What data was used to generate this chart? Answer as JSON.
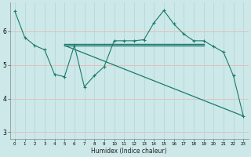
{
  "xlabel": "Humidex (Indice chaleur)",
  "bg_color": "#cce8e8",
  "line_color": "#1a7a6e",
  "grid_color_h": "#e8b8b8",
  "grid_color_v": "#b8d8d8",
  "xlim": [
    -0.5,
    23.5
  ],
  "ylim": [
    2.8,
    6.85
  ],
  "yticks": [
    3,
    4,
    5,
    6
  ],
  "xticks": [
    0,
    1,
    2,
    3,
    4,
    5,
    6,
    7,
    8,
    9,
    10,
    11,
    12,
    13,
    14,
    15,
    16,
    17,
    18,
    19,
    20,
    21,
    22,
    23
  ],
  "zigzag_x": [
    0,
    1,
    2,
    3,
    4,
    5,
    6,
    7,
    8,
    9,
    10,
    11,
    12,
    13,
    14,
    15,
    16,
    17,
    18,
    19,
    20,
    21,
    22,
    23
  ],
  "zigzag_y": [
    6.6,
    5.82,
    5.58,
    5.45,
    4.72,
    4.65,
    5.58,
    4.35,
    4.68,
    4.95,
    5.72,
    5.72,
    5.72,
    5.75,
    6.25,
    6.62,
    6.22,
    5.92,
    5.72,
    5.72,
    5.55,
    5.38,
    4.68,
    3.48
  ],
  "flat_line_x": [
    5,
    19
  ],
  "flat_line_y": [
    5.58,
    5.58
  ],
  "flat_line2_x": [
    5,
    19
  ],
  "flat_line2_y": [
    5.62,
    5.62
  ],
  "diag_line_x": [
    5,
    23
  ],
  "diag_line_y": [
    5.58,
    3.48
  ]
}
